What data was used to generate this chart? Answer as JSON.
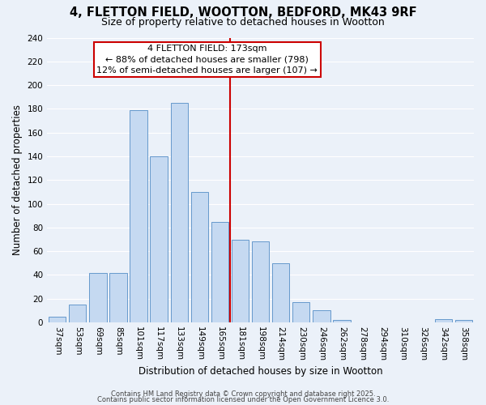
{
  "title": "4, FLETTON FIELD, WOOTTON, BEDFORD, MK43 9RF",
  "subtitle": "Size of property relative to detached houses in Wootton",
  "xlabel": "Distribution of detached houses by size in Wootton",
  "ylabel": "Number of detached properties",
  "bar_labels": [
    "37sqm",
    "53sqm",
    "69sqm",
    "85sqm",
    "101sqm",
    "117sqm",
    "133sqm",
    "149sqm",
    "165sqm",
    "181sqm",
    "198sqm",
    "214sqm",
    "230sqm",
    "246sqm",
    "262sqm",
    "278sqm",
    "294sqm",
    "310sqm",
    "326sqm",
    "342sqm",
    "358sqm"
  ],
  "bar_values": [
    5,
    15,
    42,
    42,
    179,
    140,
    185,
    110,
    85,
    70,
    68,
    50,
    17,
    10,
    2,
    0,
    0,
    0,
    0,
    3,
    2
  ],
  "bar_color": "#C5D9F1",
  "bar_edgecolor": "#6699CC",
  "background_color": "#EBF1F9",
  "grid_color": "#FFFFFF",
  "vline_color": "#CC0000",
  "annotation_title": "4 FLETTON FIELD: 173sqm",
  "annotation_line1": "← 88% of detached houses are smaller (798)",
  "annotation_line2": "12% of semi-detached houses are larger (107) →",
  "annotation_box_edgecolor": "#CC0000",
  "annotation_box_facecolor": "#FFFFFF",
  "ylim": [
    0,
    240
  ],
  "yticks": [
    0,
    20,
    40,
    60,
    80,
    100,
    120,
    140,
    160,
    180,
    200,
    220,
    240
  ],
  "footer1": "Contains HM Land Registry data © Crown copyright and database right 2025.",
  "footer2": "Contains public sector information licensed under the Open Government Licence 3.0.",
  "title_fontsize": 10.5,
  "subtitle_fontsize": 9,
  "axis_label_fontsize": 8.5,
  "tick_fontsize": 7.5,
  "annotation_fontsize": 8,
  "footer_fontsize": 6
}
